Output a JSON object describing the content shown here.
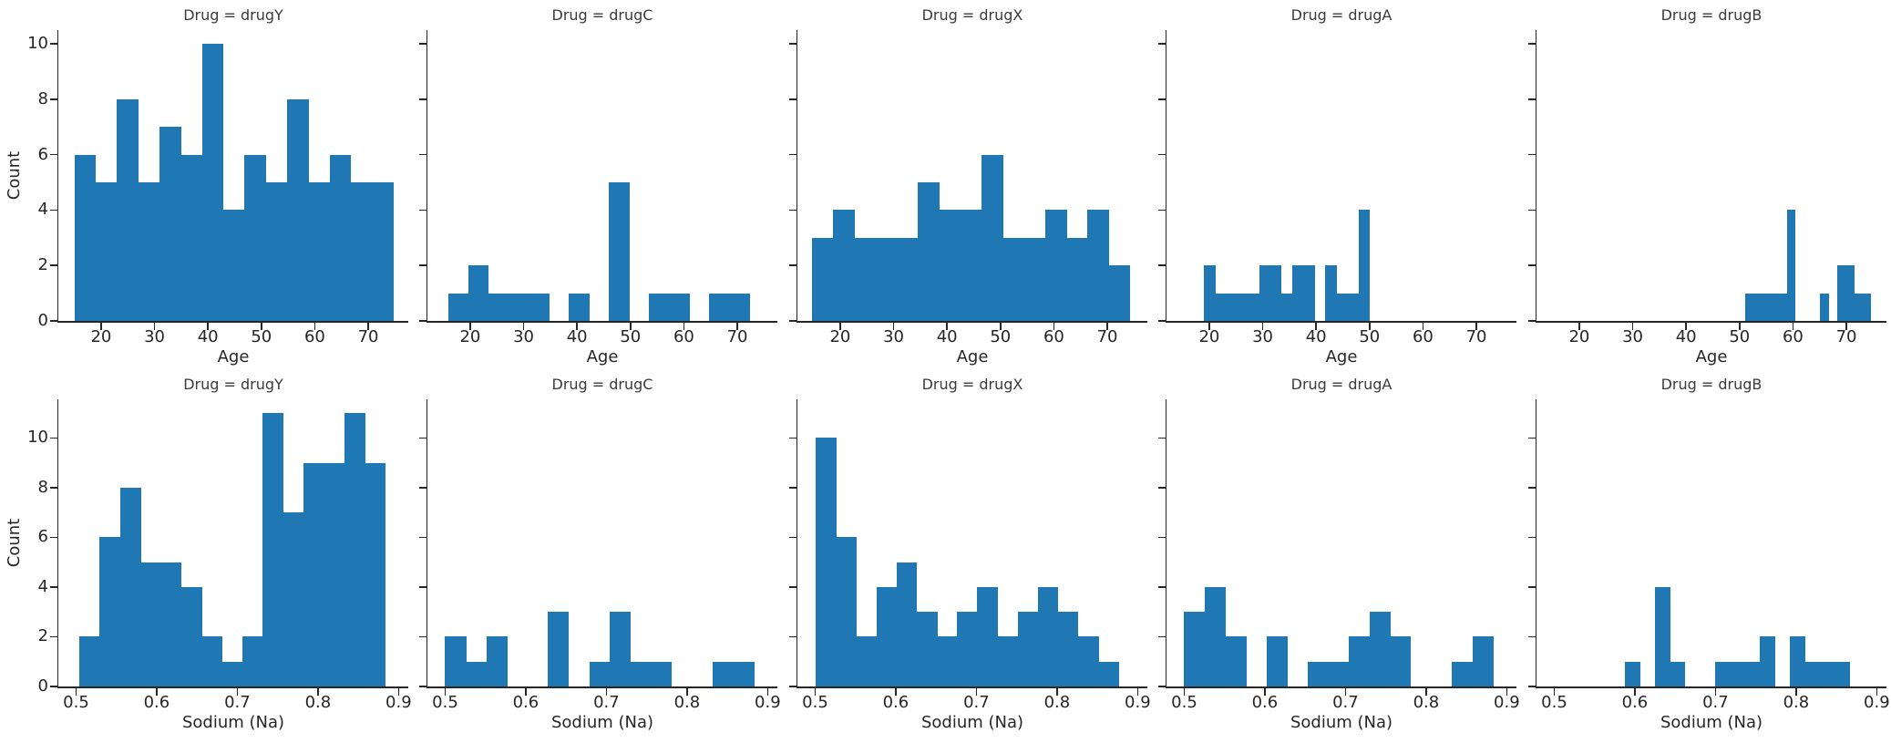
{
  "chart_data": {
    "type": "histogram-grid",
    "description": "Faceted histograms, one column per Drug category, top row distribution of Age, bottom row distribution of Sodium (Na)",
    "ylabel": "Count",
    "bar_color": "#1f77b4",
    "text_color": "#262626",
    "legend": "none",
    "grid": "off",
    "rows": [
      {
        "xlabel": "Age",
        "xlim": [
          12.0,
          77.5
        ],
        "ylim": [
          0,
          10.5
        ],
        "xticks": [
          20,
          30,
          40,
          50,
          60,
          70
        ],
        "yticks": [
          0,
          2,
          4,
          6,
          8,
          10
        ],
        "panels": [
          {
            "title": "Drug = drugY",
            "drug": "drugY",
            "bin_start": 15.0,
            "bin_width": 3.98,
            "counts": [
              6,
              5,
              8,
              5,
              7,
              6,
              10,
              4,
              6,
              5,
              8,
              5,
              6,
              5,
              5
            ]
          },
          {
            "title": "Drug = drugC",
            "drug": "drugC",
            "bin_start": 15.9,
            "bin_width": 3.76,
            "counts": [
              1,
              2,
              1,
              1,
              1,
              0,
              1,
              0,
              5,
              0,
              1,
              1,
              0,
              1,
              1
            ]
          },
          {
            "title": "Drug = drugX",
            "drug": "drugX",
            "bin_start": 14.7,
            "bin_width": 3.97,
            "counts": [
              3,
              4,
              3,
              3,
              3,
              5,
              4,
              4,
              6,
              3,
              3,
              4,
              3,
              4,
              2
            ]
          },
          {
            "title": "Drug = drugA",
            "drug": "drugA",
            "bin_start": 19.0,
            "bin_width": 2.067,
            "counts": [
              2,
              1,
              1,
              1,
              1,
              2,
              2,
              1,
              2,
              2,
              0,
              2,
              1,
              1,
              4
            ]
          },
          {
            "title": "Drug = drugB",
            "drug": "drugB",
            "bin_start": 51.0,
            "bin_width": 1.567,
            "counts": [
              1,
              1,
              1,
              1,
              1,
              4,
              0,
              0,
              0,
              1,
              0,
              2,
              2,
              1,
              1
            ]
          }
        ]
      },
      {
        "xlabel": "Sodium (Na)",
        "xlim": [
          0.478,
          0.912
        ],
        "ylim": [
          0,
          11.55
        ],
        "xticks": [
          0.5,
          0.6,
          0.7,
          0.8,
          0.9
        ],
        "yticks": [
          0,
          2,
          4,
          6,
          8,
          10
        ],
        "panels": [
          {
            "title": "Drug = drugY",
            "drug": "drugY",
            "bin_start": 0.504,
            "bin_width": 0.02527,
            "counts": [
              2,
              6,
              8,
              5,
              5,
              4,
              2,
              1,
              2,
              11,
              7,
              9,
              9,
              11,
              9
            ]
          },
          {
            "title": "Drug = drugC",
            "drug": "drugC",
            "bin_start": 0.5,
            "bin_width": 0.02553,
            "counts": [
              2,
              1,
              2,
              0,
              0,
              3,
              0,
              1,
              3,
              1,
              1,
              0,
              0,
              1,
              1
            ]
          },
          {
            "title": "Drug = drugX",
            "drug": "drugX",
            "bin_start": 0.501,
            "bin_width": 0.025,
            "counts": [
              10,
              6,
              2,
              4,
              5,
              3,
              2,
              3,
              4,
              2,
              3,
              4,
              3,
              2,
              1
            ]
          },
          {
            "title": "Drug = drugA",
            "drug": "drugA",
            "bin_start": 0.5,
            "bin_width": 0.02553,
            "counts": [
              3,
              4,
              2,
              0,
              2,
              0,
              1,
              1,
              2,
              3,
              2,
              0,
              0,
              1,
              2
            ]
          },
          {
            "title": "Drug = drugB",
            "drug": "drugB",
            "bin_start": 0.588,
            "bin_width": 0.01853,
            "counts": [
              1,
              0,
              4,
              1,
              0,
              0,
              1,
              1,
              1,
              2,
              0,
              2,
              1,
              1,
              1
            ]
          }
        ]
      }
    ]
  }
}
